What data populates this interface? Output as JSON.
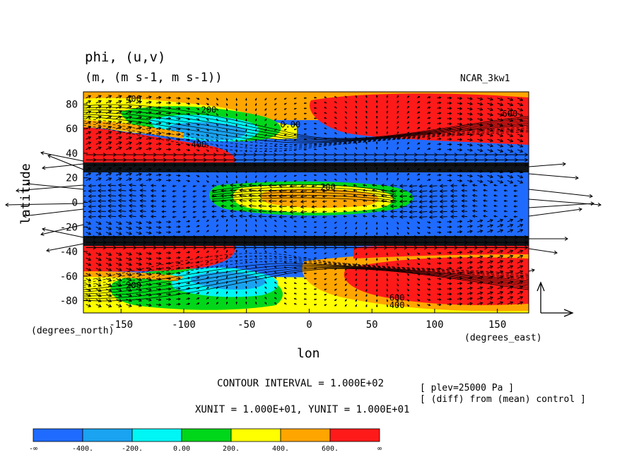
{
  "chart_data": {
    "type": "heatmap",
    "title": "phi, (u,v)",
    "subtitle": "(m, (m s-1, m s-1))",
    "model_label": "NCAR_3kw1",
    "xlabel": "lon",
    "ylabel": "latitude",
    "x_unit_label": "(degrees_east)",
    "y_unit_label": "(degrees_north)",
    "xlim": [
      -180,
      175
    ],
    "ylim": [
      -90,
      90
    ],
    "x_ticks": [
      -150,
      -100,
      -50,
      0,
      50,
      100,
      150
    ],
    "x_tick_labels": [
      "-150",
      "-100",
      "-50",
      "0",
      "50",
      "100",
      "150"
    ],
    "y_ticks": [
      -80,
      -60,
      -40,
      -20,
      0,
      20,
      40,
      60,
      80
    ],
    "y_tick_labels": [
      "-80",
      "-60",
      "-40",
      "-20",
      "0",
      "20",
      "40",
      "60",
      "80"
    ],
    "contour_interval_text": "CONTOUR INTERVAL = 1.000E+02",
    "vector_unit_text": "XUNIT = 1.000E+01, YUNIT = 1.000E+01",
    "annotation_lines": [
      "[ plev=25000 Pa ]",
      "[ (diff) from (mean) control ]"
    ],
    "contour_labels": [
      {
        "text": "400",
        "lon": -140,
        "lat": 82
      },
      {
        "text": "200",
        "lon": -80,
        "lat": 73
      },
      {
        "text": "0.00",
        "lon": -15,
        "lat": 61
      },
      {
        "text": "-400",
        "lon": -90,
        "lat": 45
      },
      {
        "text": "600",
        "lon": 160,
        "lat": 70
      },
      {
        "text": "200",
        "lon": 15,
        "lat": 10
      },
      {
        "text": "200",
        "lon": -140,
        "lat": -70
      },
      {
        "text": "600",
        "lon": 70,
        "lat": -80
      },
      {
        "text": "400",
        "lon": 70,
        "lat": -86
      }
    ],
    "colorbar": {
      "levels": [
        "-∞",
        "-400.",
        "-200.",
        "0.00",
        "200.",
        "400.",
        "600.",
        "∞"
      ],
      "colors": [
        "#1f6bff",
        "#1aa3f0",
        "#00f5f5",
        "#00d61a",
        "#ffff00",
        "#ffa500",
        "#ff1a1a"
      ]
    }
  }
}
